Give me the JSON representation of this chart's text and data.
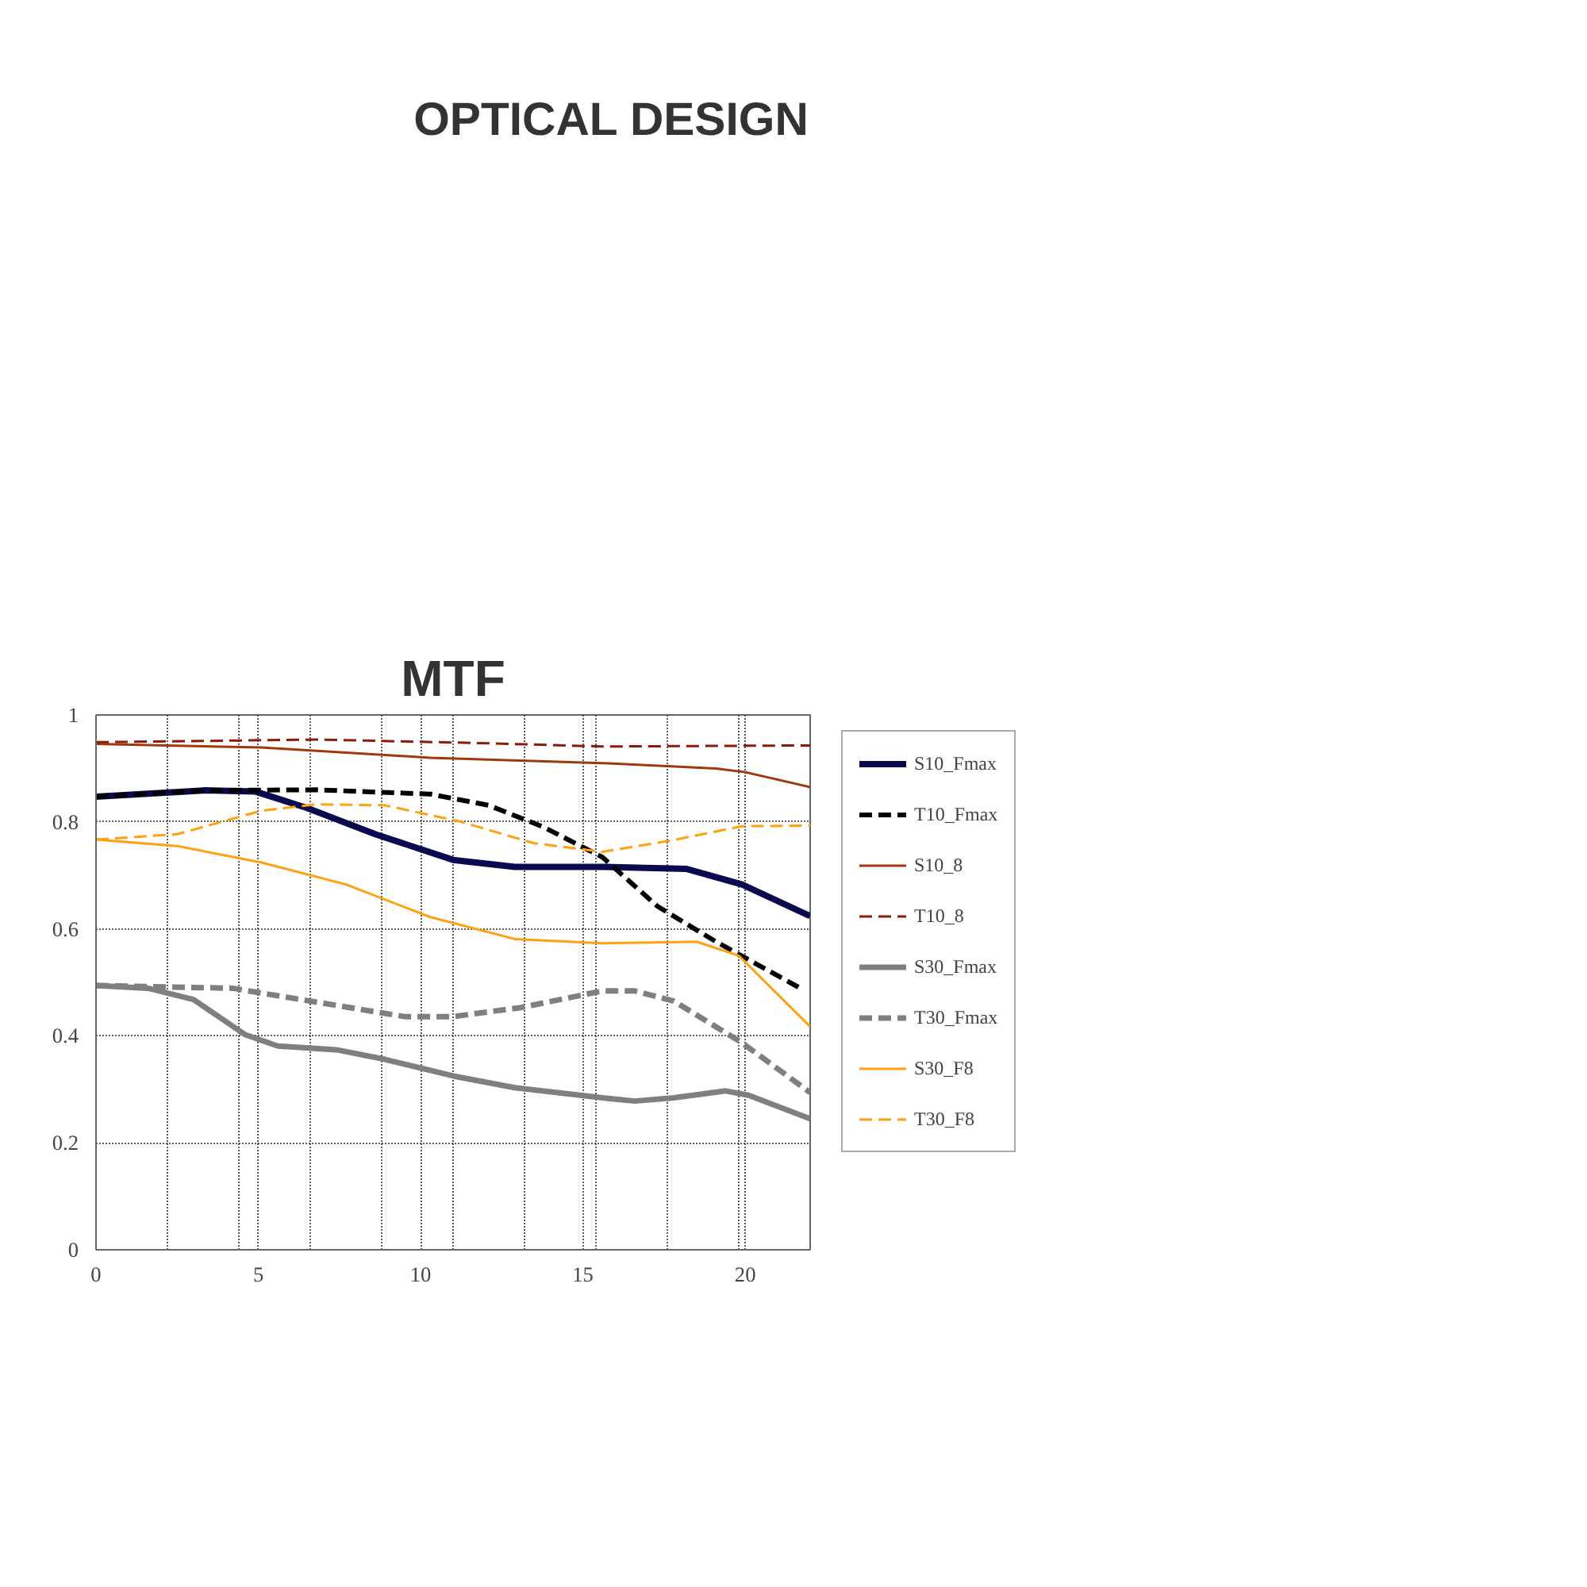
{
  "chart_data": {
    "type": "line",
    "title": "MTF",
    "annotations": [
      "OPTICAL DESIGN"
    ],
    "xlim": [
      0,
      22
    ],
    "ylim": [
      0,
      1
    ],
    "xticks": [
      0,
      {
        "value": 2.2,
        "label": null
      },
      {
        "value": 4.4,
        "label": null
      },
      5,
      {
        "value": 6.6,
        "label": null
      },
      {
        "value": 8.8,
        "label": null
      },
      10,
      {
        "value": 11,
        "label": null
      },
      {
        "value": 13.2,
        "label": null
      },
      15,
      {
        "value": 15.4,
        "label": null
      },
      {
        "value": 17.6,
        "label": null
      },
      {
        "value": 19.8,
        "label": null
      },
      20,
      {
        "value": 22,
        "label": null
      }
    ],
    "yticks": [
      0,
      {
        "value": 0.2,
        "label": "0.2"
      },
      {
        "value": 0.4,
        "label": "0.4"
      },
      {
        "value": 0.6,
        "label": "0.6"
      },
      {
        "value": 0.8,
        "label": "0.8"
      },
      1
    ],
    "grid": true,
    "legend": "right",
    "marker": "none",
    "series": [
      {
        "name": "S10_Fmax",
        "color": "#0a0a50",
        "line_style": "solid",
        "x": [
          0,
          3.35,
          4.9,
          6.5,
          8.6,
          11,
          12.9,
          15.6,
          18.2,
          19.9,
          22
        ],
        "values": [
          0.847,
          0.859,
          0.857,
          0.826,
          0.777,
          0.729,
          0.716,
          0.716,
          0.712,
          0.683,
          0.624
        ]
      },
      {
        "name": "T10_Fmax",
        "color": "#000000",
        "line_style": "dashed",
        "x": [
          0,
          3.35,
          6.8,
          10.3,
          12.1,
          13.8,
          15.6,
          17.3,
          19.1,
          21.7
        ],
        "values": [
          0.847,
          0.859,
          0.86,
          0.852,
          0.831,
          0.79,
          0.734,
          0.642,
          0.576,
          0.489
        ]
      },
      {
        "name": "S10_8",
        "color": "#a0380a",
        "line_style": "solid",
        "x": [
          0,
          5.1,
          10.3,
          15.6,
          19.1,
          20,
          22
        ],
        "values": [
          0.946,
          0.939,
          0.92,
          0.91,
          0.9,
          0.893,
          0.865
        ]
      },
      {
        "name": "T10_8",
        "color": "#8b1a0a",
        "line_style": "dashed",
        "x": [
          0,
          6.8,
          12.1,
          15.6,
          22
        ],
        "values": [
          0.949,
          0.954,
          0.947,
          0.941,
          0.943
        ]
      },
      {
        "name": "S30_Fmax",
        "color": "#7f7f7f",
        "line_style": "solid",
        "x": [
          0,
          1.6,
          3,
          4.6,
          5.6,
          7.4,
          8.9,
          11,
          12.9,
          15.6,
          16.6,
          17.8,
          19.4,
          20.1,
          22
        ],
        "values": [
          0.494,
          0.489,
          0.468,
          0.402,
          0.381,
          0.374,
          0.356,
          0.325,
          0.303,
          0.284,
          0.278,
          0.284,
          0.297,
          0.289,
          0.245
        ]
      },
      {
        "name": "T30_Fmax",
        "color": "#7f7f7f",
        "line_style": "dashed",
        "x": [
          0,
          4.2,
          6.8,
          9.5,
          11,
          13.1,
          15.6,
          16.6,
          17.8,
          19.9,
          22
        ],
        "values": [
          0.494,
          0.489,
          0.463,
          0.436,
          0.436,
          0.453,
          0.484,
          0.484,
          0.465,
          0.387,
          0.294
        ]
      },
      {
        "name": "S30_F8",
        "color": "#ffa010",
        "line_style": "solid",
        "x": [
          0,
          2.5,
          5.1,
          7.7,
          10.3,
          12.9,
          15.6,
          18.5,
          19.8,
          22
        ],
        "values": [
          0.767,
          0.755,
          0.724,
          0.683,
          0.622,
          0.581,
          0.573,
          0.576,
          0.55,
          0.417
        ]
      },
      {
        "name": "T30_F8",
        "color": "#ffa010",
        "line_style": "dashed",
        "x": [
          0,
          2.5,
          5.1,
          6.8,
          8.9,
          11.2,
          13.5,
          15.6,
          17.7,
          19.9,
          22
        ],
        "values": [
          0.767,
          0.777,
          0.821,
          0.833,
          0.831,
          0.801,
          0.76,
          0.744,
          0.765,
          0.792,
          0.793
        ]
      }
    ]
  }
}
